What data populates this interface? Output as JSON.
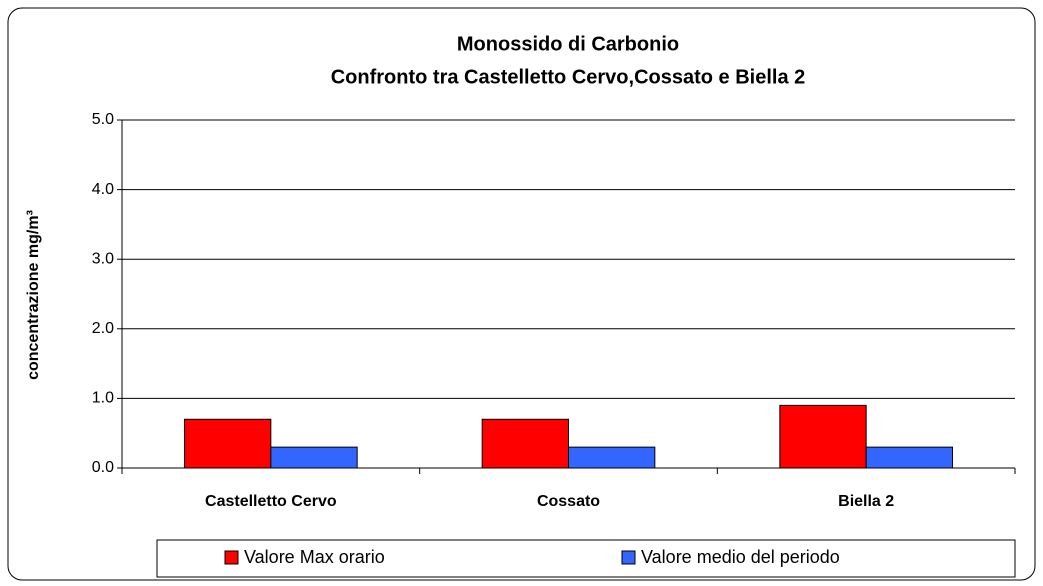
{
  "chart_data": {
    "type": "bar",
    "title": "Monossido di Carbonio",
    "subtitle": "Confronto tra Castelletto Cervo,Cossato e  Biella 2",
    "y_label": "concentrazione mg/m³",
    "categories": [
      "Castelletto Cervo",
      "Cossato",
      "Biella 2"
    ],
    "series": [
      {
        "name": "Valore Max orario",
        "color": "#ff0000",
        "values": [
          0.7,
          0.7,
          0.9
        ]
      },
      {
        "name": "Valore medio del periodo",
        "color": "#3366ff",
        "values": [
          0.3,
          0.3,
          0.3
        ]
      }
    ],
    "ylim": [
      0,
      5
    ],
    "yticks": [
      {
        "value": 0,
        "label": "0.0"
      },
      {
        "value": 1,
        "label": "1.0"
      },
      {
        "value": 2,
        "label": "2.0"
      },
      {
        "value": 3,
        "label": "3.0"
      },
      {
        "value": 4,
        "label": "4.0"
      },
      {
        "value": 5,
        "label": "5.0"
      }
    ],
    "grid": true,
    "legend": "bottom"
  }
}
